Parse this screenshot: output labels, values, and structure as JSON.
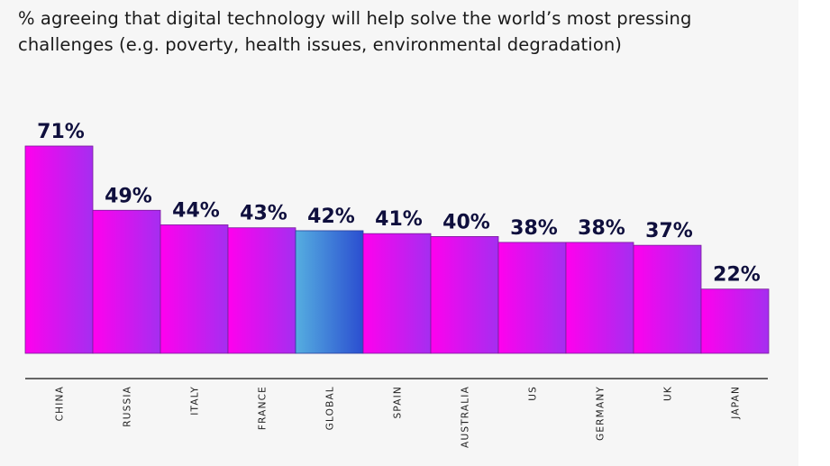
{
  "chart_data": {
    "type": "bar",
    "title": "% agreeing that digital technology will help solve the world’s most pressing challenges (e.g. poverty, health issues, environmental degradation)",
    "title_lines": [
      "% agreeing that digital technology will help solve the world’s most pressing",
      "challenges (e.g. poverty, health issues, environmental degradation)"
    ],
    "xlabel": "",
    "ylabel": "",
    "ylim": [
      0,
      71
    ],
    "grid": false,
    "categories": [
      "CHINA",
      "RUSSIA",
      "ITALY",
      "FRANCE",
      "GLOBAL",
      "SPAIN",
      "AUSTRALIA",
      "US",
      "GERMANY",
      "UK",
      "JAPAN"
    ],
    "values": [
      71,
      49,
      44,
      43,
      42,
      41,
      40,
      38,
      38,
      37,
      22
    ],
    "data_labels": [
      "71%",
      "49%",
      "44%",
      "43%",
      "42%",
      "41%",
      "40%",
      "38%",
      "38%",
      "37%",
      "22%"
    ],
    "highlight_category": "GLOBAL",
    "colors": {
      "bar_gradient_start": "#ff00ee",
      "bar_gradient_end": "#a52ef0",
      "highlight_gradient_start": "#55aee0",
      "highlight_gradient_end": "#2b4ed0",
      "label_color": "#0f0f3d",
      "axis_color": "#111111"
    }
  }
}
